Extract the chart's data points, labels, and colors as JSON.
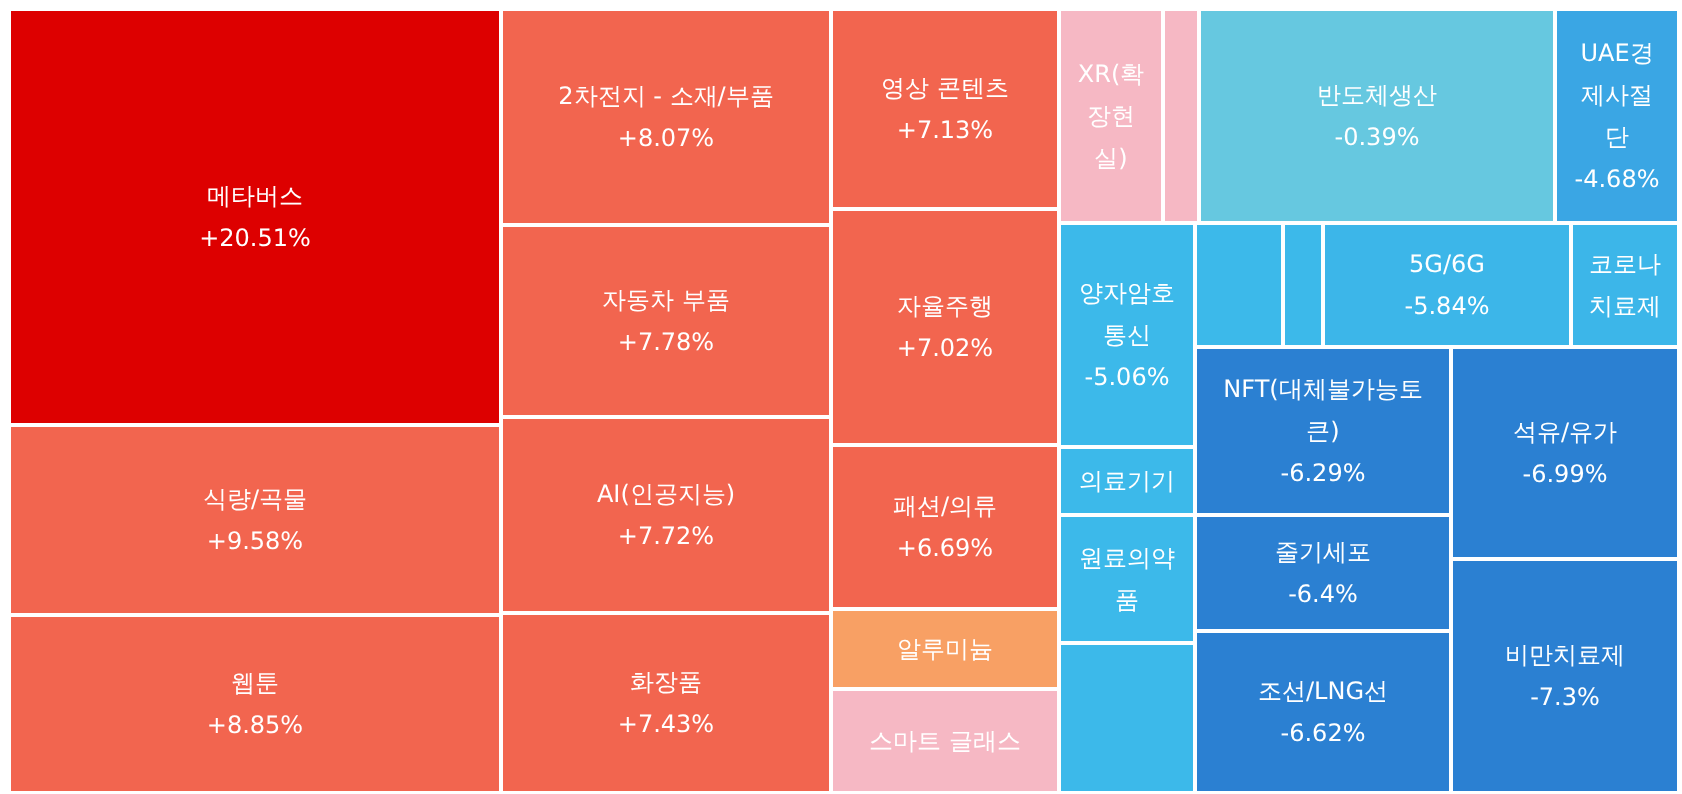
{
  "chart_data": {
    "type": "other",
    "categories": [
      "메타버스",
      "식량/곡물",
      "웹툰",
      "2차전지 - 소재/부품",
      "자동차 부품",
      "AI(인공지능)",
      "화장품",
      "영상 콘텐츠",
      "자율주행",
      "패션/의류",
      "알루미늄",
      "스마트 글래스",
      "XR(확장현실)",
      null,
      "반도체생산",
      "UAE경제사절단",
      "양자암호통신",
      null,
      null,
      "5G/6G",
      "코로나치료제",
      "의료기기",
      "원료의약품",
      null,
      "NFT(대체불가능토큰)",
      "줄기세포",
      "조선/LNG선",
      "석유/유가",
      "비만치료제"
    ],
    "values": [
      20.51,
      9.58,
      8.85,
      8.07,
      7.78,
      7.72,
      7.43,
      7.13,
      7.02,
      6.69,
      null,
      null,
      null,
      null,
      -0.39,
      -4.68,
      -5.06,
      null,
      null,
      -5.84,
      null,
      null,
      null,
      null,
      -6.29,
      -6.4,
      -6.62,
      -6.99,
      -7.3
    ],
    "value_labels": [
      "+20.51%",
      "+9.58%",
      "+8.85%",
      "+8.07%",
      "+7.78%",
      "+7.72%",
      "+7.43%",
      "+7.13%",
      "+7.02%",
      "+6.69%",
      null,
      null,
      null,
      null,
      "-0.39%",
      "-4.68%",
      "-5.06%",
      null,
      null,
      "-5.84%",
      null,
      null,
      null,
      null,
      "-6.29%",
      "-6.4%",
      "-6.62%",
      "-6.99%",
      "-7.3%"
    ],
    "colors": [
      "#dd0000",
      "#f2654f",
      "#f2654f",
      "#f2654f",
      "#f2654f",
      "#f2654f",
      "#f2654f",
      "#f2654f",
      "#f2654f",
      "#f2654f",
      "#f8a064",
      "#f6b8c4",
      "#f6b8c4",
      "#f6b8c4",
      "#66c8e0",
      "#3aa6e4",
      "#3cb9ea",
      "#3cb9ea",
      "#3cb9ea",
      "#3cb6e9",
      "#3cb6e9",
      "#3cb9ea",
      "#3cb9ea",
      "#3cb9ea",
      "#2b80d2",
      "#2b80d2",
      "#2b80d2",
      "#2b80d2",
      "#2b80d2"
    ]
  }
}
